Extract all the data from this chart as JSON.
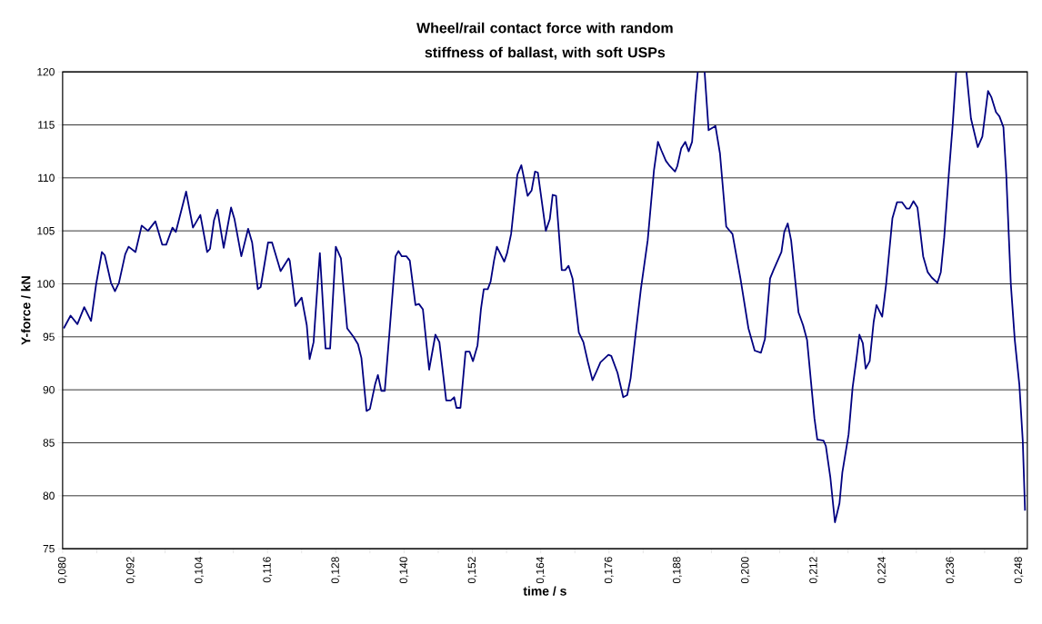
{
  "chart_data": {
    "type": "line",
    "title": "Wheel/rail contact force with random stiffness of ballast, with soft USPs",
    "xlabel": "time / s",
    "ylabel": "Y-force / kN",
    "xlim": [
      0.08,
      0.2495
    ],
    "ylim": [
      75,
      120
    ],
    "xticks": [
      {
        "value": 0.08,
        "label": "0,080"
      },
      {
        "value": 0.086,
        "label": null
      },
      {
        "value": 0.092,
        "label": "0,092"
      },
      {
        "value": 0.098,
        "label": null
      },
      {
        "value": 0.104,
        "label": "0,104"
      },
      {
        "value": 0.11,
        "label": null
      },
      {
        "value": 0.116,
        "label": "0,116"
      },
      {
        "value": 0.122,
        "label": null
      },
      {
        "value": 0.128,
        "label": "0,128"
      },
      {
        "value": 0.134,
        "label": null
      },
      {
        "value": 0.14,
        "label": "0,140"
      },
      {
        "value": 0.146,
        "label": null
      },
      {
        "value": 0.152,
        "label": "0,152"
      },
      {
        "value": 0.158,
        "label": null
      },
      {
        "value": 0.164,
        "label": "0,164"
      },
      {
        "value": 0.17,
        "label": null
      },
      {
        "value": 0.176,
        "label": "0,176"
      },
      {
        "value": 0.182,
        "label": null
      },
      {
        "value": 0.188,
        "label": "0,188"
      },
      {
        "value": 0.194,
        "label": null
      },
      {
        "value": 0.2,
        "label": "0,200"
      },
      {
        "value": 0.206,
        "label": null
      },
      {
        "value": 0.212,
        "label": "0,212"
      },
      {
        "value": 0.218,
        "label": null
      },
      {
        "value": 0.224,
        "label": "0,224"
      },
      {
        "value": 0.23,
        "label": null
      },
      {
        "value": 0.236,
        "label": "0,236"
      },
      {
        "value": 0.242,
        "label": null
      },
      {
        "value": 0.248,
        "label": "0,248"
      }
    ],
    "yticks": [
      75,
      80,
      85,
      90,
      95,
      100,
      105,
      110,
      115,
      120
    ],
    "grid": "y",
    "marker": "none",
    "line_style": "solid",
    "series": [
      {
        "color": "#000080",
        "x": [
          0.0802,
          0.0814,
          0.0826,
          0.0838,
          0.085,
          0.0859,
          0.0869,
          0.0874,
          0.0885,
          0.0892,
          0.0899,
          0.091,
          0.0916,
          0.0928,
          0.0939,
          0.095,
          0.0963,
          0.0975,
          0.0982,
          0.0993,
          0.0999,
          0.1017,
          0.1029,
          0.1042,
          0.1054,
          0.1059,
          0.1066,
          0.1072,
          0.1083,
          0.1096,
          0.1102,
          0.1114,
          0.1126,
          0.1133,
          0.1143,
          0.1148,
          0.1161,
          0.1168,
          0.1183,
          0.1197,
          0.1199,
          0.1209,
          0.122,
          0.1229,
          0.1234,
          0.1241,
          0.1248,
          0.1252,
          0.1262,
          0.127,
          0.128,
          0.1289,
          0.13,
          0.1311,
          0.1319,
          0.1325,
          0.1334,
          0.134,
          0.1349,
          0.1354,
          0.136,
          0.1366,
          0.1374,
          0.1381,
          0.1385,
          0.139,
          0.1396,
          0.1404,
          0.141,
          0.142,
          0.1426,
          0.1433,
          0.1444,
          0.1455,
          0.1462,
          0.1474,
          0.1482,
          0.1488,
          0.1492,
          0.1499,
          0.1508,
          0.1515,
          0.1521,
          0.1529,
          0.1535,
          0.154,
          0.1547,
          0.1552,
          0.1558,
          0.1563,
          0.1576,
          0.1581,
          0.1588,
          0.1599,
          0.1606,
          0.1617,
          0.1624,
          0.163,
          0.1635,
          0.1649,
          0.1656,
          0.1661,
          0.1667,
          0.1677,
          0.1683,
          0.1689,
          0.1696,
          0.1707,
          0.1715,
          0.1723,
          0.1731,
          0.1737,
          0.1745,
          0.1759,
          0.1764,
          0.1775,
          0.1785,
          0.1792,
          0.1798,
          0.1806,
          0.1816,
          0.1828,
          0.1839,
          0.1846,
          0.1852,
          0.186,
          0.1867,
          0.1876,
          0.188,
          0.1887,
          0.1894,
          0.19,
          0.1906,
          0.1912,
          0.1916,
          0.1922,
          0.1928,
          0.1935,
          0.1947,
          0.1955,
          0.1966,
          0.1977,
          0.1991,
          0.2005,
          0.2016,
          0.2027,
          0.2034,
          0.2043,
          0.2049,
          0.2063,
          0.2068,
          0.2074,
          0.208,
          0.2093,
          0.2101,
          0.2108,
          0.2121,
          0.2126,
          0.2137,
          0.2141,
          0.2149,
          0.2157,
          0.2165,
          0.217,
          0.2181,
          0.2188,
          0.2195,
          0.22,
          0.2206,
          0.2211,
          0.2218,
          0.2225,
          0.223,
          0.224,
          0.2247,
          0.2258,
          0.2266,
          0.2275,
          0.2283,
          0.2288,
          0.2295,
          0.2302,
          0.2312,
          0.232,
          0.2327,
          0.2337,
          0.2343,
          0.2349,
          0.2357,
          0.2364,
          0.237,
          0.2379,
          0.2388,
          0.2396,
          0.2408,
          0.2416,
          0.2426,
          0.2432,
          0.244,
          0.2446,
          0.2453,
          0.2458,
          0.2466,
          0.2473,
          0.2481,
          0.2487,
          0.2491
        ],
        "values": [
          95.8,
          97.0,
          96.2,
          97.8,
          96.5,
          100.0,
          103.0,
          102.7,
          100.1,
          99.3,
          100.1,
          102.8,
          103.5,
          103.0,
          105.5,
          105.0,
          105.9,
          103.7,
          103.7,
          105.3,
          104.9,
          108.7,
          105.3,
          106.5,
          103.0,
          103.3,
          106.0,
          107.0,
          103.4,
          107.2,
          106.1,
          102.6,
          105.2,
          103.9,
          99.5,
          99.7,
          103.9,
          103.9,
          101.2,
          102.4,
          102.2,
          97.9,
          98.7,
          96.1,
          92.9,
          94.5,
          100.0,
          102.9,
          93.9,
          93.9,
          103.5,
          102.4,
          95.8,
          95.0,
          94.3,
          93.0,
          88.0,
          88.2,
          90.5,
          91.4,
          89.9,
          89.9,
          95.2,
          100.0,
          102.6,
          103.1,
          102.6,
          102.6,
          102.2,
          98.0,
          98.1,
          97.6,
          91.9,
          95.2,
          94.5,
          89.0,
          89.0,
          89.3,
          88.3,
          88.3,
          93.6,
          93.6,
          92.7,
          94.2,
          97.6,
          99.5,
          99.5,
          100.2,
          102.2,
          103.5,
          102.1,
          102.9,
          104.7,
          110.3,
          111.2,
          108.3,
          108.8,
          110.6,
          110.5,
          105.0,
          106.1,
          108.4,
          108.3,
          101.3,
          101.3,
          101.7,
          100.5,
          95.4,
          94.5,
          92.6,
          90.9,
          91.6,
          92.6,
          93.3,
          93.2,
          91.6,
          89.3,
          89.5,
          91.1,
          94.9,
          99.5,
          104.1,
          110.7,
          113.4,
          112.6,
          111.6,
          111.1,
          110.6,
          111.1,
          112.8,
          113.4,
          112.5,
          113.4,
          117.6,
          120,
          null,
          120,
          114.5,
          114.9,
          112.3,
          105.4,
          104.7,
          100.5,
          95.8,
          93.7,
          93.5,
          94.8,
          100.5,
          101.3,
          103.0,
          104.9,
          105.7,
          104.1,
          97.3,
          96.1,
          94.7,
          87.3,
          85.3,
          85.2,
          84.7,
          81.7,
          77.5,
          79.3,
          82.2,
          85.8,
          90.2,
          93.0,
          95.2,
          94.4,
          92.0,
          92.7,
          96.4,
          98.0,
          96.9,
          100.0,
          106.2,
          107.7,
          107.7,
          107.1,
          107.1,
          107.8,
          107.2,
          102.6,
          101.1,
          100.6,
          100.1,
          101.1,
          104.4,
          110.3,
          115.1,
          120,
          null,
          120,
          115.6,
          112.9,
          113.9,
          118.2,
          117.6,
          116.2,
          115.8,
          114.8,
          110.3,
          100.0,
          94.7,
          90.5,
          85.2,
          78.6
        ]
      }
    ]
  }
}
